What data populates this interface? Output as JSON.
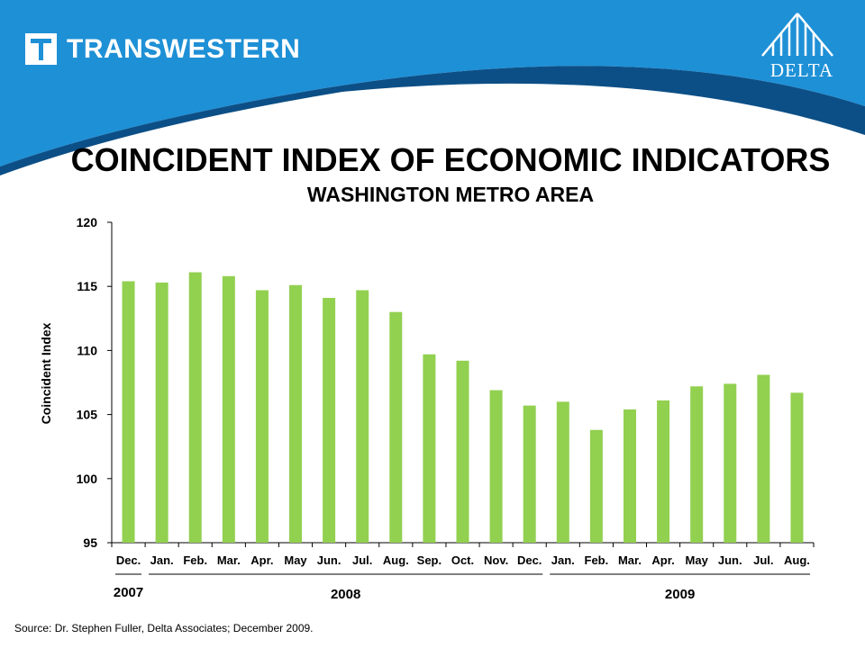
{
  "header": {
    "brand": "TRANSWESTERN",
    "partner": "DELTA",
    "colors": {
      "band": "#1e90d6",
      "band_dark": "#0c4f86",
      "bar": "#92d050"
    }
  },
  "chart_data": {
    "type": "bar",
    "title": "COINCIDENT INDEX OF ECONOMIC INDICATORS",
    "subtitle": "WASHINGTON METRO AREA",
    "xlabel": "",
    "ylabel": "Coincident Index",
    "ylim": [
      95,
      120
    ],
    "yticks": [
      95,
      100,
      105,
      110,
      115,
      120
    ],
    "categories": [
      "Dec.",
      "Jan.",
      "Feb.",
      "Mar.",
      "Apr.",
      "May",
      "Jun.",
      "Jul.",
      "Aug.",
      "Sep.",
      "Oct.",
      "Nov.",
      "Dec.",
      "Jan.",
      "Feb.",
      "Mar.",
      "Apr.",
      "May",
      "Jun.",
      "Jul.",
      "Aug."
    ],
    "values": [
      115.4,
      115.3,
      116.1,
      115.8,
      114.7,
      115.1,
      114.1,
      114.7,
      113.0,
      109.7,
      109.2,
      106.9,
      105.7,
      106.0,
      103.8,
      105.4,
      106.1,
      107.2,
      107.4,
      108.1,
      106.7
    ],
    "year_groups": [
      {
        "label": "2007",
        "start": 0,
        "end": 0
      },
      {
        "label": "2008",
        "start": 1,
        "end": 12
      },
      {
        "label": "2009",
        "start": 13,
        "end": 20
      }
    ],
    "grid": false,
    "legend": "none"
  },
  "footer": {
    "source": "Source:  Dr. Stephen Fuller, Delta Associates; December 2009."
  }
}
